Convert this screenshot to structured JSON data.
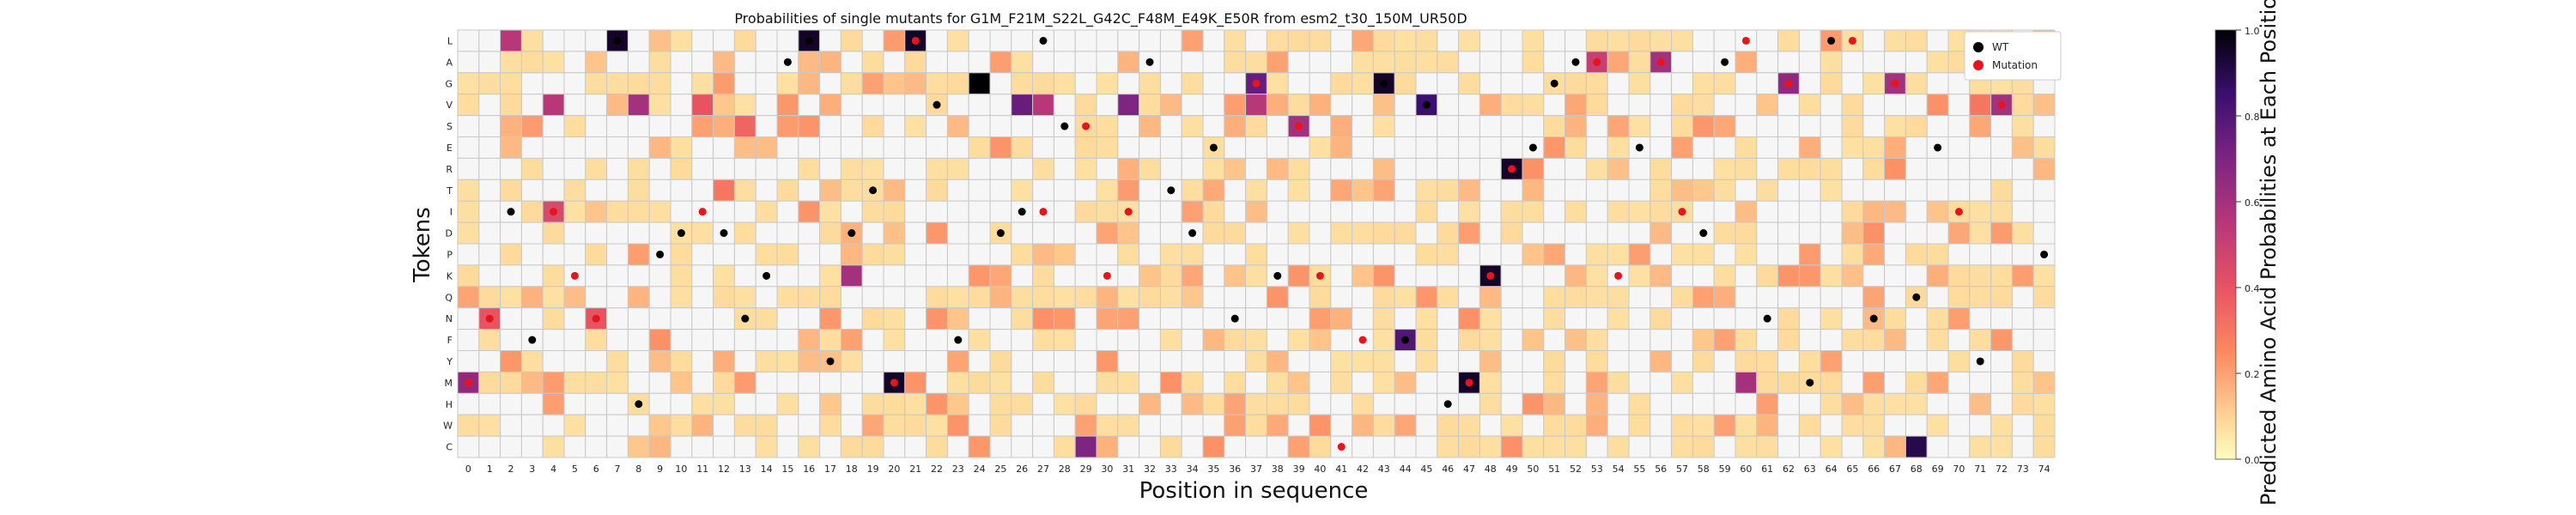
{
  "chart_data": {
    "type": "heatmap",
    "title": "Probabilities of single mutants for G1M_F21M_S22L_G42C_F48M_E49K_E50R from esm2_t30_150M_UR50D",
    "xlabel": "Position in sequence",
    "ylabel": "Tokens",
    "tokens": [
      "L",
      "A",
      "G",
      "V",
      "S",
      "E",
      "R",
      "T",
      "I",
      "D",
      "P",
      "K",
      "Q",
      "N",
      "F",
      "Y",
      "M",
      "H",
      "W",
      "C"
    ],
    "positions": [
      0,
      1,
      2,
      3,
      4,
      5,
      6,
      7,
      8,
      9,
      10,
      11,
      12,
      13,
      14,
      15,
      16,
      17,
      18,
      19,
      20,
      21,
      22,
      23,
      24,
      25,
      26,
      27,
      28,
      29,
      30,
      31,
      32,
      33,
      34,
      35,
      36,
      37,
      38,
      39,
      40,
      41,
      42,
      43,
      44,
      45,
      46,
      47,
      48,
      49,
      50,
      51,
      52,
      53,
      54,
      55,
      56,
      57,
      58,
      59,
      60,
      61,
      62,
      63,
      64,
      65,
      66,
      67,
      68,
      69,
      70,
      71,
      72,
      73,
      74
    ],
    "colorbar": {
      "label": "Predicted Amino Acid Probabilities at Each Position",
      "range": [
        0.0,
        1.0
      ],
      "ticks": [
        "0.0",
        "0.2",
        "0.4",
        "0.6",
        "0.8",
        "1.0"
      ],
      "colormap": "magma_r"
    },
    "legend": {
      "placement": "top-right",
      "items": [
        {
          "label": "WT",
          "color": "#000000"
        },
        {
          "label": "Mutation",
          "color": "#e8141c"
        }
      ]
    },
    "wildtype": [
      [
        "0",
        "M"
      ],
      [
        "1",
        "N"
      ],
      [
        "2",
        "I"
      ],
      [
        "3",
        "F"
      ],
      [
        "4",
        "I"
      ],
      [
        "5",
        "K"
      ],
      [
        "6",
        "N"
      ],
      [
        "7",
        "L"
      ],
      [
        "8",
        "H"
      ],
      [
        "9",
        "P"
      ],
      [
        "10",
        "D"
      ],
      [
        "11",
        "I"
      ],
      [
        "12",
        "D"
      ],
      [
        "13",
        "N"
      ],
      [
        "14",
        "K"
      ],
      [
        "15",
        "A"
      ],
      [
        "16",
        "L"
      ],
      [
        "17",
        "Y"
      ],
      [
        "18",
        "D"
      ],
      [
        "19",
        "T"
      ],
      [
        "20",
        "M"
      ],
      [
        "21",
        "L"
      ],
      [
        "22",
        "V"
      ],
      [
        "23",
        "F"
      ],
      [
        "24",
        "G"
      ],
      [
        "25",
        "D"
      ],
      [
        "26",
        "I"
      ],
      [
        "27",
        "L"
      ],
      [
        "28",
        "S"
      ],
      [
        "29",
        "S"
      ],
      [
        "30",
        "K"
      ],
      [
        "31",
        "I"
      ],
      [
        "32",
        "A"
      ],
      [
        "33",
        "T"
      ],
      [
        "34",
        "D"
      ],
      [
        "35",
        "E"
      ],
      [
        "36",
        "N"
      ],
      [
        "37",
        "G"
      ],
      [
        "38",
        "K"
      ],
      [
        "39",
        "S"
      ],
      [
        "40",
        "K"
      ],
      [
        "41",
        "C"
      ],
      [
        "42",
        "F"
      ],
      [
        "43",
        "G"
      ],
      [
        "44",
        "F"
      ],
      [
        "45",
        "V"
      ],
      [
        "46",
        "H"
      ],
      [
        "47",
        "M"
      ],
      [
        "48",
        "K"
      ],
      [
        "49",
        "R"
      ],
      [
        "50",
        "E"
      ],
      [
        "51",
        "G"
      ],
      [
        "52",
        "A"
      ],
      [
        "53",
        "A"
      ],
      [
        "54",
        "K"
      ],
      [
        "55",
        "E"
      ],
      [
        "56",
        "A"
      ],
      [
        "57",
        "I"
      ],
      [
        "58",
        "D"
      ],
      [
        "59",
        "A"
      ],
      [
        "60",
        "L"
      ],
      [
        "61",
        "N"
      ],
      [
        "62",
        "G"
      ],
      [
        "63",
        "M"
      ],
      [
        "64",
        "L"
      ],
      [
        "65",
        "L"
      ],
      [
        "66",
        "N"
      ],
      [
        "67",
        "G"
      ],
      [
        "68",
        "Q"
      ],
      [
        "69",
        "E"
      ],
      [
        "70",
        "I"
      ],
      [
        "71",
        "Y"
      ],
      [
        "72",
        "V"
      ],
      [
        "73",
        "L"
      ],
      [
        "74",
        "P"
      ]
    ],
    "mutations": [
      [
        "0",
        "M"
      ],
      [
        "1",
        "N"
      ],
      [
        "4",
        "I"
      ],
      [
        "5",
        "K"
      ],
      [
        "6",
        "N"
      ],
      [
        "11",
        "I"
      ],
      [
        "20",
        "M"
      ],
      [
        "21",
        "L"
      ],
      [
        "27",
        "I"
      ],
      [
        "29",
        "S"
      ],
      [
        "30",
        "K"
      ],
      [
        "31",
        "I"
      ],
      [
        "37",
        "G"
      ],
      [
        "39",
        "S"
      ],
      [
        "40",
        "K"
      ],
      [
        "41",
        "C"
      ],
      [
        "42",
        "F"
      ],
      [
        "47",
        "M"
      ],
      [
        "48",
        "K"
      ],
      [
        "49",
        "R"
      ],
      [
        "53",
        "A"
      ],
      [
        "54",
        "K"
      ],
      [
        "56",
        "A"
      ],
      [
        "57",
        "I"
      ],
      [
        "60",
        "L"
      ],
      [
        "62",
        "G"
      ],
      [
        "65",
        "L"
      ],
      [
        "67",
        "G"
      ],
      [
        "70",
        "I"
      ],
      [
        "72",
        "V"
      ]
    ],
    "strong_cells": [
      [
        "0",
        "M",
        0.65
      ],
      [
        "1",
        "N",
        0.4
      ],
      [
        "2",
        "L",
        0.55
      ],
      [
        "4",
        "V",
        0.55
      ],
      [
        "4",
        "I",
        0.45
      ],
      [
        "6",
        "N",
        0.4
      ],
      [
        "7",
        "L",
        0.95
      ],
      [
        "8",
        "V",
        0.6
      ],
      [
        "11",
        "V",
        0.4
      ],
      [
        "12",
        "T",
        0.3
      ],
      [
        "13",
        "S",
        0.35
      ],
      [
        "16",
        "L",
        0.95
      ],
      [
        "18",
        "K",
        0.6
      ],
      [
        "20",
        "M",
        0.95
      ],
      [
        "21",
        "L",
        0.95
      ],
      [
        "24",
        "G",
        1.0
      ],
      [
        "26",
        "V",
        0.75
      ],
      [
        "27",
        "V",
        0.55
      ],
      [
        "29",
        "C",
        0.7
      ],
      [
        "31",
        "V",
        0.7
      ],
      [
        "37",
        "G",
        0.75
      ],
      [
        "37",
        "V",
        0.55
      ],
      [
        "39",
        "S",
        0.6
      ],
      [
        "43",
        "G",
        0.95
      ],
      [
        "44",
        "F",
        0.8
      ],
      [
        "45",
        "V",
        0.85
      ],
      [
        "47",
        "M",
        0.95
      ],
      [
        "48",
        "K",
        0.95
      ],
      [
        "49",
        "R",
        0.95
      ],
      [
        "53",
        "A",
        0.5
      ],
      [
        "56",
        "A",
        0.6
      ],
      [
        "60",
        "M",
        0.6
      ],
      [
        "62",
        "G",
        0.65
      ],
      [
        "67",
        "G",
        0.6
      ],
      [
        "68",
        "C",
        0.9
      ],
      [
        "72",
        "V",
        0.6
      ],
      [
        "71",
        "V",
        0.3
      ]
    ]
  }
}
